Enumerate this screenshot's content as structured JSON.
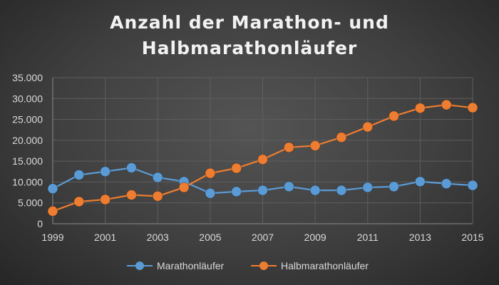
{
  "chart_data": {
    "type": "line",
    "title_lines": [
      "Anzahl der Marathon- und",
      "Halbmarathonläufer"
    ],
    "x": [
      1999,
      2000,
      2001,
      2002,
      2003,
      2004,
      2005,
      2006,
      2007,
      2008,
      2009,
      2010,
      2011,
      2012,
      2013,
      2014,
      2015
    ],
    "xticks": [
      "1999",
      "2001",
      "2003",
      "2005",
      "2007",
      "2009",
      "2011",
      "2013",
      "2015"
    ],
    "yticks": [
      "0",
      "5.000",
      "10.000",
      "15.000",
      "20.000",
      "25.000",
      "30.000",
      "35.000"
    ],
    "ylim": [
      0,
      35000
    ],
    "grid": true,
    "legend_position": "bottom",
    "series": [
      {
        "name": "Marathonläufer",
        "color": "#5b9bd5",
        "values": [
          8400,
          11700,
          12500,
          13400,
          11100,
          10100,
          7300,
          7700,
          8000,
          8900,
          8000,
          8000,
          8700,
          8900,
          10100,
          9600,
          9200
        ]
      },
      {
        "name": "Halbmarathonläufer",
        "color": "#ed7d31",
        "values": [
          3000,
          5300,
          5800,
          6900,
          6600,
          8700,
          12100,
          13300,
          15400,
          18300,
          18700,
          20700,
          23200,
          25800,
          27700,
          28500,
          27800
        ]
      }
    ]
  }
}
